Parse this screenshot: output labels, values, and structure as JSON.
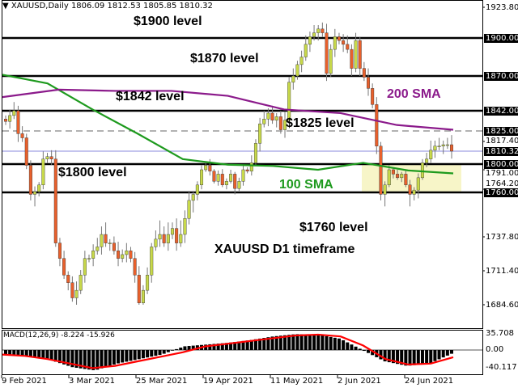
{
  "header": {
    "symbol": "XAUUSD,Daily",
    "ohlc": "1806.09 1812.53 1805.85 1810.32",
    "menu_icon": "triangle-down-icon"
  },
  "annotations": {
    "l1900": "$1900 level",
    "l1870": "$1870 level",
    "l1842": "$1842 level",
    "l1825": "$1825 level",
    "l1800": "$1800 level",
    "l1760": "$1760 level",
    "sma100": "100 SMA",
    "sma200": "200 SMA",
    "timeframe": "XAUUSD D1 timeframe"
  },
  "colors": {
    "bull": "#c8d94a",
    "bear": "#e8602c",
    "sma100": "#1e9a1e",
    "sma200": "#8b1a8b",
    "signal": "#ff0000",
    "zone": "#f7f5c8"
  },
  "chart_data": [
    {
      "type": "candlestick",
      "title": "XAUUSD,Daily",
      "levels": [
        1900,
        1870,
        1842,
        1825,
        1800,
        1760
      ],
      "current_price": 1810.32,
      "y_ticks": [
        "1923.80",
        "1817.40",
        "1791.00",
        "1764.20",
        "1737.80",
        "1711.40",
        "1684.60"
      ],
      "price_tags": [
        "1900.00",
        "1870.00",
        "1842.00",
        "1825.00",
        "1810.32",
        "1800.00",
        "1760.00"
      ],
      "x_labels": [
        "9 Feb 2021",
        "3 Mar 2021",
        "25 Mar 2021",
        "19 Apr 2021",
        "11 May 2021",
        "2 Jun 2021",
        "24 Jun 2021"
      ],
      "closes": [
        1833,
        1838,
        1842,
        1823,
        1820,
        1798,
        1759,
        1761,
        1770,
        1804,
        1806,
        1804,
        1733,
        1721,
        1708,
        1702,
        1690,
        1696,
        1708,
        1721,
        1721,
        1727,
        1730,
        1739,
        1733,
        1733,
        1727,
        1721,
        1724,
        1727,
        1721,
        1708,
        1686,
        1696,
        1708,
        1730,
        1736,
        1739,
        1733,
        1739,
        1742,
        1733,
        1739,
        1747,
        1756,
        1759,
        1770,
        1791,
        1798,
        1789,
        1775,
        1785,
        1770,
        1775,
        1785,
        1765,
        1775,
        1791,
        1789,
        1801,
        1816,
        1831,
        1835,
        1840,
        1834,
        1837,
        1826,
        1834,
        1865,
        1870,
        1879,
        1885,
        1895,
        1901,
        1904,
        1907,
        1904,
        1872,
        1891,
        1901,
        1898,
        1895,
        1891,
        1876,
        1898,
        1876,
        1869,
        1860,
        1847,
        1814,
        1759,
        1770,
        1791,
        1785,
        1780,
        1785,
        1770,
        1759,
        1763,
        1780,
        1801,
        1804,
        1811,
        1814,
        1814,
        1815,
        1815,
        1810.32
      ],
      "sma100": [
        1871,
        1864,
        1843,
        1823,
        1804,
        1799,
        1797,
        1791,
        1801,
        1790,
        1786
      ],
      "sma200": [
        1853,
        1859,
        1858,
        1858,
        1854,
        1843,
        1840,
        1830,
        1826
      ]
    },
    {
      "type": "bar",
      "title": "MACD(12,26,9) -8.224 -15.926",
      "y_ticks": [
        "35.708",
        "0.00",
        "-40.117"
      ],
      "macd": [
        -10,
        -14,
        -22,
        -38,
        -45,
        -30,
        -20,
        -10,
        8,
        12,
        16,
        22,
        30,
        35,
        34,
        25,
        0,
        -25,
        -35,
        -30,
        -8.224
      ],
      "signal": [
        -10,
        -13,
        -20,
        -30,
        -40,
        -35,
        -25,
        -15,
        -5,
        8,
        14,
        20,
        26,
        32,
        34,
        30,
        10,
        -20,
        -32,
        -30,
        -15.926
      ]
    }
  ]
}
